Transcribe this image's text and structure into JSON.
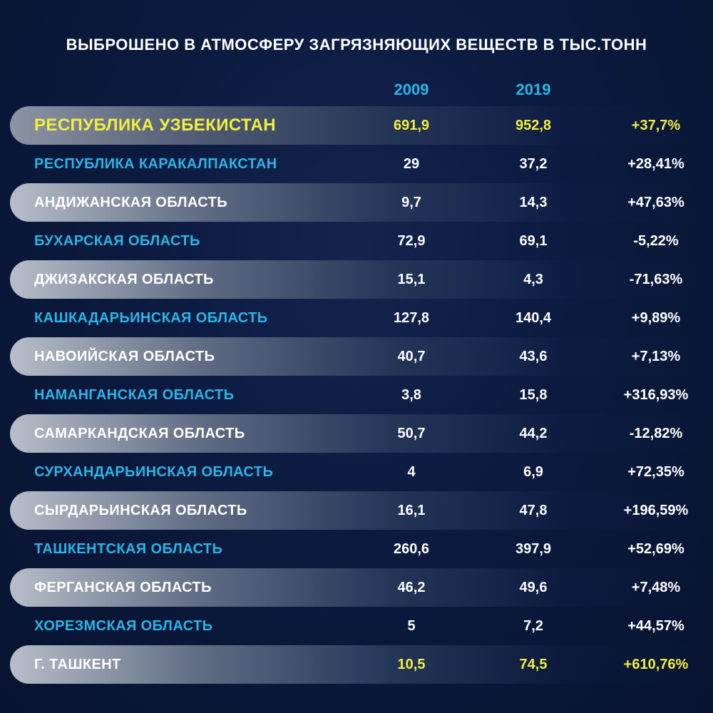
{
  "chart_data": {
    "type": "table",
    "title": "ВЫБРОШЕНО В АТМОСФЕРУ ЗАГРЯЗНЯЮЩИХ ВЕЩЕСТВ В ТЫС.ТОНН",
    "columns": [
      "2009",
      "2019"
    ],
    "rows": [
      {
        "name": "РЕСПУБЛИКА УЗБЕКИСТАН",
        "v2009": "691,9",
        "v2019": "952,8",
        "change": "+37,7%",
        "style": "total"
      },
      {
        "name": "РЕСПУБЛИКА КАРАКАЛПАКСТАН",
        "v2009": "29",
        "v2019": "37,2",
        "change": "+28,41%",
        "style": "blue"
      },
      {
        "name": "АНДИЖАНСКАЯ ОБЛАСТЬ",
        "v2009": "9,7",
        "v2019": "14,3",
        "change": "+47,63%",
        "style": "white"
      },
      {
        "name": "БУХАРСКАЯ ОБЛАСТЬ",
        "v2009": "72,9",
        "v2019": "69,1",
        "change": "-5,22%",
        "style": "blue"
      },
      {
        "name": "ДЖИЗАКСКАЯ ОБЛАСТЬ",
        "v2009": "15,1",
        "v2019": "4,3",
        "change": "-71,63%",
        "style": "white"
      },
      {
        "name": "КАШКАДАРЬИНСКАЯ ОБЛАСТЬ",
        "v2009": "127,8",
        "v2019": "140,4",
        "change": "+9,89%",
        "style": "blue"
      },
      {
        "name": "НАВОИЙСКАЯ ОБЛАСТЬ",
        "v2009": "40,7",
        "v2019": "43,6",
        "change": "+7,13%",
        "style": "white"
      },
      {
        "name": "НАМАНГАНСКАЯ ОБЛАСТЬ",
        "v2009": "3,8",
        "v2019": "15,8",
        "change": "+316,93%",
        "style": "blue"
      },
      {
        "name": "САМАРКАНДСКАЯ ОБЛАСТЬ",
        "v2009": "50,7",
        "v2019": "44,2",
        "change": "-12,82%",
        "style": "white"
      },
      {
        "name": "СУРХАНДАРЬИНСКАЯ ОБЛАСТЬ",
        "v2009": "4",
        "v2019": "6,9",
        "change": "+72,35%",
        "style": "blue"
      },
      {
        "name": "СЫРДАРЬИНСКАЯ ОБЛАСТЬ",
        "v2009": "16,1",
        "v2019": "47,8",
        "change": "+196,59%",
        "style": "white"
      },
      {
        "name": "ТАШКЕНТСКАЯ ОБЛАСТЬ",
        "v2009": "260,6",
        "v2019": "397,9",
        "change": "+52,69%",
        "style": "blue"
      },
      {
        "name": "ФЕРГАНСКАЯ ОБЛАСТЬ",
        "v2009": "46,2",
        "v2019": "49,6",
        "change": "+7,48%",
        "style": "white"
      },
      {
        "name": "ХОРЕЗМСКАЯ ОБЛАСТЬ",
        "v2009": "5",
        "v2019": "7,2",
        "change": "+44,57%",
        "style": "blue"
      },
      {
        "name": "Г. ТАШКЕНТ",
        "v2009": "10,5",
        "v2019": "74,5",
        "change": "+610,76%",
        "style": "city"
      }
    ]
  }
}
